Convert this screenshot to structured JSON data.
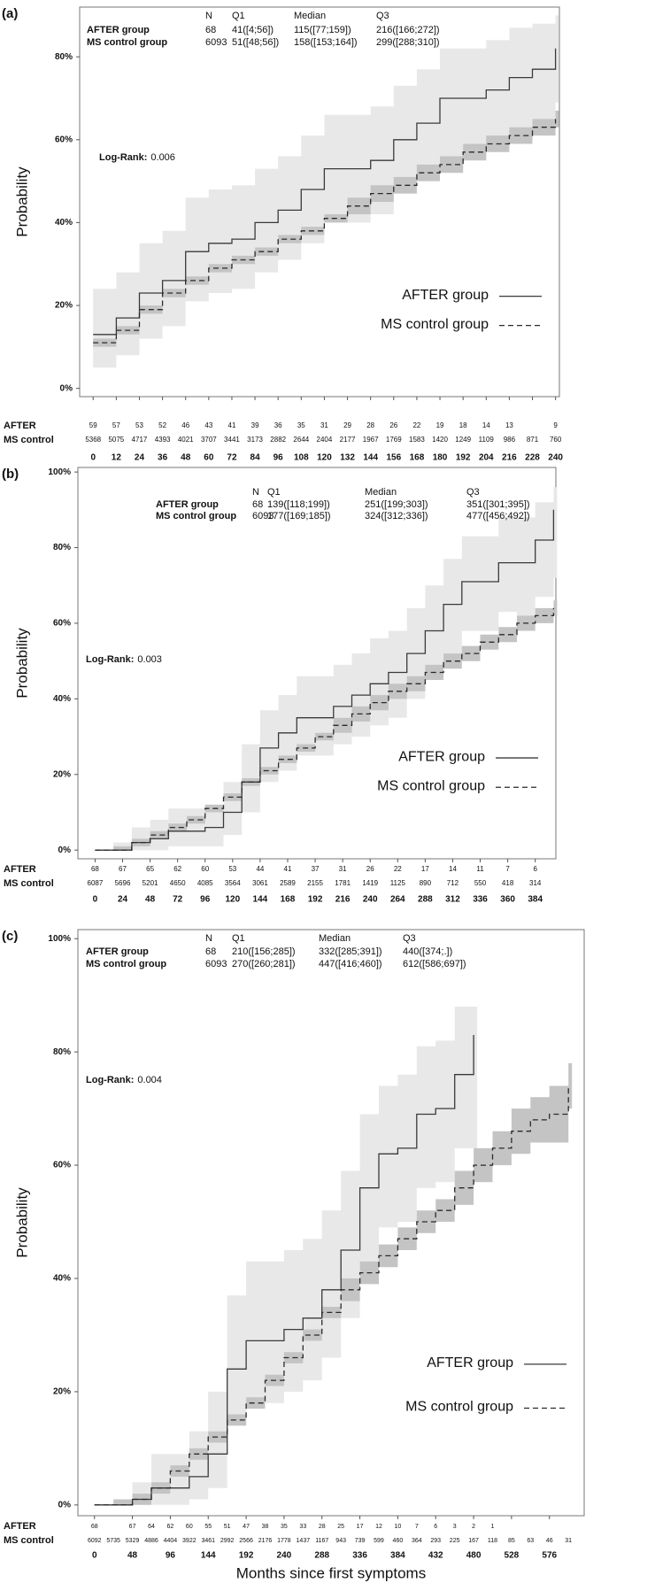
{
  "chart_data": [
    {
      "type": "step",
      "panel": "(a)",
      "ylabel": "Probability",
      "xlim": [
        -7,
        242
      ],
      "ylim": [
        -2,
        92
      ],
      "xticks": [
        0,
        12,
        24,
        36,
        48,
        60,
        72,
        84,
        96,
        108,
        120,
        132,
        144,
        156,
        168,
        180,
        192,
        204,
        216,
        228,
        240
      ],
      "yticks": [
        {
          "value": 0,
          "label": "0%"
        },
        {
          "value": 20,
          "label": "20%"
        },
        {
          "value": 40,
          "label": "40%"
        },
        {
          "value": 60,
          "label": "60%"
        },
        {
          "value": 80,
          "label": "80%"
        }
      ],
      "legend": "lower right",
      "x": [
        0,
        12,
        24,
        36,
        48,
        60,
        72,
        84,
        96,
        108,
        120,
        132,
        144,
        156,
        168,
        180,
        192,
        204,
        216,
        228,
        240
      ],
      "series": [
        {
          "name": "AFTER group",
          "color": "#3a3a3a",
          "dash": "none",
          "band_color": "#e8e8e8",
          "values": [
            13,
            17,
            23,
            26,
            33,
            35,
            36,
            40,
            43,
            48,
            53,
            53,
            55,
            60,
            64,
            70,
            70,
            72,
            75,
            77,
            82
          ],
          "lower": [
            5,
            8,
            12,
            15,
            21,
            23,
            24,
            28,
            31,
            35,
            40,
            40,
            42,
            47,
            51,
            56,
            56,
            58,
            61,
            63,
            69
          ],
          "upper": [
            24,
            28,
            35,
            38,
            46,
            48,
            49,
            53,
            56,
            61,
            66,
            66,
            68,
            73,
            77,
            82,
            82,
            84,
            87,
            88,
            90
          ]
        },
        {
          "name": "MS control group",
          "color": "#2a2a2a",
          "dash": "6,4",
          "band_color": "#c4c4c4",
          "values": [
            11,
            14,
            19,
            23,
            26,
            29,
            31,
            33,
            36,
            38,
            41,
            44,
            47,
            49,
            52,
            54,
            57,
            59,
            61,
            63,
            65
          ],
          "lower": [
            10,
            13,
            18,
            22,
            25,
            28,
            30,
            32,
            35,
            37,
            40,
            42,
            45,
            47,
            50,
            52,
            55,
            57,
            59,
            61,
            63
          ],
          "upper": [
            12,
            15,
            20,
            24,
            27,
            30,
            32,
            34,
            37,
            39,
            42,
            46,
            49,
            51,
            54,
            56,
            59,
            61,
            63,
            65,
            67
          ]
        }
      ],
      "summary": {
        "columns": [
          "N",
          "Q1",
          "Median",
          "Q3"
        ],
        "rows": [
          {
            "group": "AFTER group",
            "cells": [
              68,
              "41([4;56])",
              "115([77;159])",
              "216([166;272])"
            ]
          },
          {
            "group": "MS control group",
            "cells": [
              6093,
              "51([48;56])",
              "158([153;164])",
              "299([288;310])"
            ]
          }
        ]
      },
      "annotation": {
        "label": "Log-Rank:",
        "value": 0.006
      },
      "risk_table": {
        "x": [
          0,
          12,
          24,
          36,
          48,
          60,
          72,
          84,
          96,
          108,
          120,
          132,
          144,
          156,
          168,
          180,
          192,
          204,
          216,
          228,
          240
        ],
        "rows": [
          {
            "label": "AFTER",
            "values": [
              59,
              57,
              53,
              52,
              46,
              43,
              41,
              39,
              36,
              35,
              31,
              29,
              28,
              26,
              22,
              19,
              18,
              14,
              13,
              null,
              9
            ]
          },
          {
            "label": "MS control",
            "values": [
              5368,
              5075,
              4717,
              4393,
              4021,
              3707,
              3441,
              3173,
              2882,
              2644,
              2404,
              2177,
              1967,
              1769,
              1583,
              1420,
              1249,
              1109,
              986,
              871,
              760
            ]
          }
        ]
      }
    },
    {
      "type": "step",
      "panel": "(b)",
      "ylabel": "Probability",
      "xlim": [
        -15,
        402
      ],
      "ylim": [
        -2.3,
        101.2
      ],
      "xticks": [
        0,
        24,
        48,
        72,
        96,
        120,
        144,
        168,
        192,
        216,
        240,
        264,
        288,
        312,
        336,
        360,
        384
      ],
      "yticks": [
        {
          "value": 0,
          "label": "0%"
        },
        {
          "value": 20,
          "label": "20%"
        },
        {
          "value": 40,
          "label": "40%"
        },
        {
          "value": 60,
          "label": "60%"
        },
        {
          "value": 80,
          "label": "80%"
        },
        {
          "value": 100,
          "label": "100%"
        }
      ],
      "legend": "lower right",
      "x": [
        0,
        16,
        32,
        48,
        64,
        80,
        96,
        112,
        128,
        144,
        160,
        176,
        192,
        208,
        224,
        240,
        256,
        272,
        288,
        304,
        320,
        336,
        352,
        368,
        384,
        400
      ],
      "series": [
        {
          "name": "AFTER group",
          "color": "#3a3a3a",
          "dash": "none",
          "band_color": "#e8e8e8",
          "values": [
            0,
            0,
            2,
            3,
            5,
            5,
            6,
            10,
            18,
            27,
            31,
            35,
            35,
            38,
            41,
            44,
            47,
            52,
            58,
            65,
            71,
            71,
            76,
            76,
            82,
            90
          ],
          "lower": [
            0,
            0,
            0,
            0,
            1,
            1,
            1,
            4,
            10,
            18,
            21,
            25,
            25,
            28,
            30,
            33,
            35,
            40,
            46,
            52,
            58,
            58,
            63,
            62,
            67,
            72
          ],
          "upper": [
            0,
            2,
            6,
            8,
            11,
            11,
            12,
            18,
            28,
            37,
            41,
            46,
            46,
            49,
            52,
            56,
            58,
            64,
            70,
            77,
            83,
            83,
            88,
            88,
            92,
            96
          ]
        },
        {
          "name": "MS control group",
          "color": "#2a2a2a",
          "dash": "6,4",
          "band_color": "#c4c4c4",
          "values": [
            0,
            0,
            2,
            4,
            6,
            8,
            11,
            14,
            18,
            21,
            24,
            27,
            30,
            33,
            36,
            39,
            42,
            44,
            47,
            50,
            52,
            55,
            57,
            60,
            62,
            64
          ],
          "lower": [
            0,
            0,
            1,
            3,
            5,
            7,
            10,
            13,
            17,
            20,
            23,
            26,
            29,
            31,
            34,
            37,
            40,
            42,
            45,
            48,
            50,
            53,
            55,
            58,
            60,
            62
          ],
          "upper": [
            0,
            1,
            3,
            5,
            7,
            9,
            12,
            15,
            19,
            22,
            25,
            28,
            31,
            35,
            38,
            41,
            44,
            46,
            49,
            52,
            54,
            57,
            59,
            62,
            64,
            66
          ]
        }
      ],
      "summary": {
        "columns": [
          "N",
          "Q1",
          "Median",
          "Q3"
        ],
        "rows": [
          {
            "group": "AFTER group",
            "cells": [
              68,
              "139([118;199])",
              "251([199;303])",
              "351([301;395])"
            ]
          },
          {
            "group": "MS control group",
            "cells": [
              6093,
              "177([169;185])",
              "324([312;336])",
              "477([456;492])"
            ]
          }
        ]
      },
      "annotation": {
        "label": "Log-Rank:",
        "value": 0.003
      },
      "risk_table": {
        "x": [
          0,
          24,
          48,
          72,
          96,
          120,
          144,
          168,
          192,
          216,
          240,
          264,
          288,
          312,
          336,
          360,
          384
        ],
        "rows": [
          {
            "label": "AFTER",
            "values": [
              68,
              67,
              65,
              62,
              60,
              53,
              44,
              41,
              37,
              31,
              26,
              22,
              17,
              14,
              11,
              7,
              6
            ]
          },
          {
            "label": "MS control",
            "values": [
              6087,
              5696,
              5201,
              4650,
              4085,
              3564,
              3061,
              2589,
              2155,
              1781,
              1419,
              1125,
              890,
              712,
              550,
              418,
              314
            ]
          }
        ]
      }
    },
    {
      "type": "step",
      "panel": "(c)",
      "ylabel": "Probability",
      "xlabel": "Months since first symptoms",
      "xlim": [
        -21,
        620
      ],
      "ylim": [
        -1.9,
        101.6
      ],
      "xticks": [
        0,
        48,
        96,
        144,
        192,
        240,
        288,
        336,
        384,
        432,
        480,
        528,
        576
      ],
      "yticks": [
        {
          "value": 0,
          "label": "0%"
        },
        {
          "value": 20,
          "label": "20%"
        },
        {
          "value": 40,
          "label": "40%"
        },
        {
          "value": 60,
          "label": "60%"
        },
        {
          "value": 80,
          "label": "80%"
        },
        {
          "value": 100,
          "label": "100%"
        }
      ],
      "legend": "lower right",
      "x": [
        0,
        24,
        48,
        72,
        96,
        120,
        144,
        168,
        192,
        216,
        240,
        264,
        288,
        312,
        336,
        360,
        384,
        408,
        432,
        456,
        480,
        504,
        528,
        552,
        576,
        600
      ],
      "series": [
        {
          "name": "AFTER group",
          "color": "#3a3a3a",
          "dash": "none",
          "band_color": "#e8e8e8",
          "values": [
            0,
            0,
            1,
            3,
            3,
            5,
            9,
            24,
            29,
            29,
            31,
            33,
            38,
            45,
            56,
            62,
            63,
            69,
            70,
            76,
            83,
            null,
            null,
            null,
            null,
            null
          ],
          "lower": [
            0,
            0,
            0,
            0,
            0,
            1,
            3,
            14,
            18,
            18,
            20,
            22,
            26,
            33,
            43,
            49,
            50,
            56,
            57,
            63,
            63,
            null,
            null,
            null,
            null,
            null
          ],
          "upper": [
            0,
            1,
            4,
            9,
            9,
            13,
            20,
            37,
            43,
            43,
            45,
            47,
            52,
            59,
            69,
            74,
            76,
            81,
            82,
            88,
            88,
            null,
            null,
            null,
            null,
            null
          ]
        },
        {
          "name": "MS control group",
          "color": "#2a2a2a",
          "dash": "6,4",
          "band_color": "#c4c4c4",
          "values": [
            0,
            0,
            1,
            3,
            6,
            9,
            12,
            15,
            18,
            22,
            26,
            30,
            34,
            38,
            41,
            44,
            47,
            50,
            52,
            56,
            60,
            63,
            66,
            68,
            69,
            74
          ],
          "lower": [
            0,
            0,
            0,
            2,
            5,
            8,
            11,
            14,
            17,
            21,
            25,
            29,
            33,
            36,
            39,
            42,
            45,
            48,
            50,
            53,
            57,
            60,
            62,
            64,
            64,
            70
          ],
          "upper": [
            0,
            1,
            2,
            4,
            7,
            10,
            13,
            16,
            19,
            23,
            27,
            31,
            35,
            40,
            43,
            46,
            49,
            52,
            54,
            59,
            63,
            66,
            70,
            72,
            74,
            78
          ]
        }
      ],
      "summary": {
        "columns": [
          "N",
          "Q1",
          "Median",
          "Q3"
        ],
        "rows": [
          {
            "group": "AFTER group",
            "cells": [
              68,
              "210([156;285])",
              "332([285;391])",
              "440([374;.])"
            ]
          },
          {
            "group": "MS control group",
            "cells": [
              6093,
              "270([260;281])",
              "447([416;460])",
              "612([586;697])"
            ]
          }
        ]
      },
      "annotation": {
        "label": "Log-Rank:",
        "value": 0.004
      },
      "risk_table": {
        "x": [
          0,
          24,
          48,
          72,
          96,
          120,
          144,
          168,
          192,
          216,
          240,
          264,
          288,
          312,
          336,
          360,
          384,
          408,
          432,
          456,
          480,
          504,
          528,
          552,
          576,
          600
        ],
        "rows": [
          {
            "label": "AFTER",
            "values": [
              68,
              null,
              67,
              64,
              62,
              60,
              55,
              51,
              47,
              38,
              35,
              33,
              28,
              25,
              17,
              12,
              10,
              7,
              6,
              3,
              2,
              1,
              null,
              null,
              null,
              null
            ]
          },
          {
            "label": "MS control",
            "values": [
              6092,
              5735,
              5329,
              4886,
              4404,
              3922,
              3461,
              2992,
              2566,
              2176,
              1778,
              1437,
              1167,
              943,
              739,
              599,
              460,
              364,
              293,
              225,
              167,
              118,
              85,
              63,
              46,
              31
            ]
          }
        ]
      }
    }
  ]
}
